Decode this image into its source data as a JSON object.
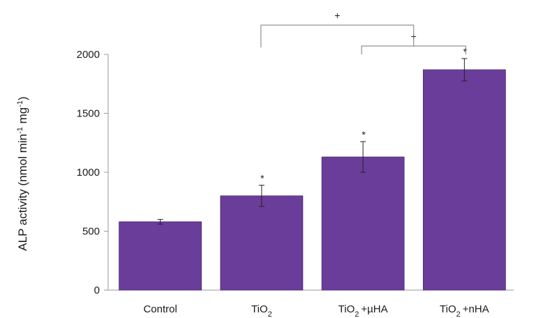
{
  "chart_data": {
    "type": "bar",
    "categories": [
      {
        "base": "Control",
        "sub": "",
        "suffix": ""
      },
      {
        "base": "TiO",
        "sub": "2",
        "suffix": ""
      },
      {
        "base": "TiO",
        "sub": "2",
        "suffix": "+µHA"
      },
      {
        "base": "TiO",
        "sub": "2",
        "suffix": "+nHA"
      }
    ],
    "values": [
      580,
      800,
      1130,
      1870
    ],
    "errors": [
      20,
      90,
      130,
      95
    ],
    "bar_markers": [
      "",
      "*",
      "*",
      "*"
    ],
    "ylabel": {
      "main": "ALP activity (nmol min",
      "sup1": "-1",
      "mid": " mg",
      "sup2": "-1",
      "end": ")"
    },
    "ylim": [
      0,
      2000
    ],
    "yticks": [
      "0",
      "500",
      "1000",
      "1500",
      "2000"
    ],
    "ytick_values": [
      0,
      500,
      1000,
      1500,
      2000
    ],
    "bar_color": "#6a3d9a",
    "brackets": [
      {
        "from": 1,
        "to_bracket": 1,
        "label": "+"
      },
      {
        "from": 2,
        "to": 3,
        "label": "+"
      }
    ]
  }
}
